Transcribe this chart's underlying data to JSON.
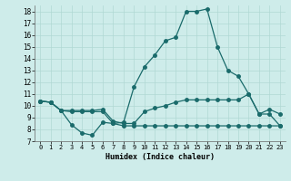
{
  "xlabel": "Humidex (Indice chaleur)",
  "bg_color": "#ceecea",
  "grid_color": "#b0d8d4",
  "line_color": "#1a6b6b",
  "xlim": [
    -0.5,
    23.5
  ],
  "ylim": [
    7,
    18.5
  ],
  "xticks": [
    0,
    1,
    2,
    3,
    4,
    5,
    6,
    7,
    8,
    9,
    10,
    11,
    12,
    13,
    14,
    15,
    16,
    17,
    18,
    19,
    20,
    21,
    22,
    23
  ],
  "yticks": [
    7,
    8,
    9,
    10,
    11,
    12,
    13,
    14,
    15,
    16,
    17,
    18
  ],
  "line1_x": [
    0,
    1,
    2,
    3,
    4,
    5,
    6,
    7,
    8,
    9,
    10,
    11,
    12,
    13,
    14,
    15,
    16,
    17,
    18,
    19,
    20,
    21,
    22,
    23
  ],
  "line1_y": [
    10.4,
    10.3,
    9.6,
    8.4,
    7.7,
    7.5,
    8.6,
    8.5,
    8.6,
    11.6,
    13.3,
    14.3,
    15.5,
    15.8,
    18.0,
    18.0,
    18.2,
    15.0,
    13.0,
    12.5,
    11.0,
    9.3,
    9.7,
    9.3
  ],
  "line2_x": [
    0,
    1,
    2,
    3,
    4,
    5,
    6,
    7,
    8,
    9,
    10,
    11,
    12,
    13,
    14,
    15,
    16,
    17,
    18,
    19,
    20,
    21,
    22,
    23
  ],
  "line2_y": [
    10.4,
    10.3,
    9.6,
    9.6,
    9.6,
    9.6,
    9.7,
    8.7,
    8.5,
    8.5,
    9.5,
    9.8,
    10.0,
    10.3,
    10.5,
    10.5,
    10.5,
    10.5,
    10.5,
    10.5,
    11.0,
    9.3,
    9.3,
    8.3
  ],
  "line3_x": [
    0,
    1,
    2,
    3,
    4,
    5,
    6,
    7,
    8,
    9,
    10,
    11,
    12,
    13,
    14,
    15,
    16,
    17,
    18,
    19,
    20,
    21,
    22,
    23
  ],
  "line3_y": [
    10.4,
    10.3,
    9.6,
    9.5,
    9.5,
    9.5,
    9.5,
    8.5,
    8.3,
    8.3,
    8.3,
    8.3,
    8.3,
    8.3,
    8.3,
    8.3,
    8.3,
    8.3,
    8.3,
    8.3,
    8.3,
    8.3,
    8.3,
    8.3
  ],
  "marker_size": 2.5,
  "linewidth": 0.9
}
